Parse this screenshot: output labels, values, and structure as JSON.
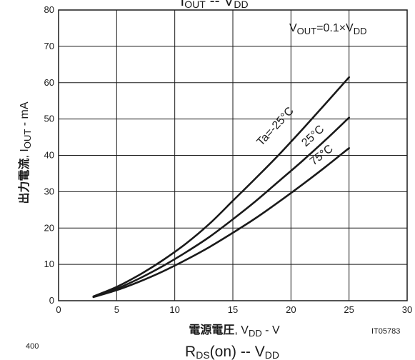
{
  "chart_data": {
    "type": "line",
    "title": {
      "main": "I",
      "sub": "OUT",
      "sep": " -- ",
      "main2": "V",
      "sub2": "DD"
    },
    "condition": {
      "v": "V",
      "out": "OUT",
      "eq": "=0.1×V",
      "dd": "DD"
    },
    "xlabel": {
      "jp": "電源電圧",
      "sep": ", V",
      "sub": "DD",
      "unit": " - V"
    },
    "ylabel": {
      "jp": "出力電流",
      "sep": ", I",
      "sub": "OUT",
      "unit": " - mA"
    },
    "xlim": [
      0,
      30
    ],
    "ylim": [
      0,
      80
    ],
    "xticks": [
      "0",
      "5",
      "10",
      "15",
      "20",
      "25",
      "30"
    ],
    "yticks": [
      "0",
      "10",
      "20",
      "30",
      "40",
      "50",
      "60",
      "70",
      "80"
    ],
    "grid": true,
    "series": [
      {
        "name": "Ta=-25°C",
        "x": [
          3,
          5,
          7,
          9,
          11,
          13,
          15,
          17,
          19,
          21,
          23,
          25
        ],
        "values": [
          1.2,
          3.8,
          7.2,
          11.2,
          15.8,
          21.2,
          27.5,
          33.8,
          40.3,
          47.2,
          54.3,
          61.5
        ]
      },
      {
        "name": "25°C",
        "x": [
          3,
          5,
          7,
          9,
          11,
          13,
          15,
          17,
          19,
          21,
          23,
          25
        ],
        "values": [
          1.1,
          3.3,
          6.2,
          9.6,
          13.4,
          17.6,
          22.4,
          27.5,
          33.0,
          38.5,
          44.3,
          50.4
        ]
      },
      {
        "name": "75°C",
        "x": [
          3,
          5,
          7,
          9,
          11,
          13,
          15,
          17,
          19,
          21,
          23,
          25
        ],
        "values": [
          1.0,
          2.9,
          5.3,
          8.1,
          11.3,
          14.8,
          18.7,
          22.8,
          27.3,
          32.0,
          36.9,
          42.0
        ]
      }
    ],
    "code": "IT05783"
  },
  "next_chart": {
    "title": {
      "main": "R",
      "sub": "DS",
      "mid": "(on)",
      "sep": " -- ",
      "main2": "V",
      "sub2": "DD"
    },
    "ytick_top": "400"
  }
}
